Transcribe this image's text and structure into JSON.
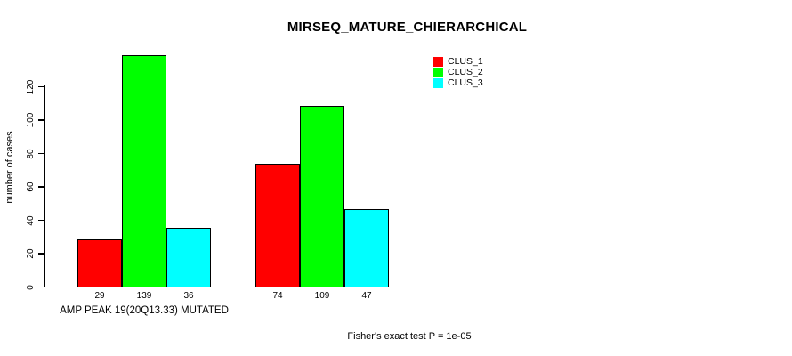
{
  "title": "MIRSEQ_MATURE_CHIERARCHICAL",
  "legend": {
    "items": [
      {
        "label": "CLUS_1",
        "color": "#ff0000"
      },
      {
        "label": "CLUS_2",
        "color": "#00ff00"
      },
      {
        "label": "CLUS_3",
        "color": "#00ffff"
      }
    ]
  },
  "chart_data": {
    "type": "bar",
    "title": "MIRSEQ_MATURE_CHIERARCHICAL",
    "xlabel": "",
    "ylabel": "number of cases",
    "yticks": [
      0,
      20,
      40,
      60,
      80,
      100,
      120
    ],
    "ylim": [
      0,
      139
    ],
    "categories": [
      "AMP PEAK 19(20Q13.33) MUTATED",
      ""
    ],
    "series": [
      {
        "name": "CLUS_1",
        "color": "#ff0000",
        "values": [
          29,
          74
        ]
      },
      {
        "name": "CLUS_2",
        "color": "#00ff00",
        "values": [
          139,
          109
        ]
      },
      {
        "name": "CLUS_3",
        "color": "#00ffff",
        "values": [
          36,
          47
        ]
      }
    ],
    "groups": [
      {
        "label": "AMP PEAK 19(20Q13.33) MUTATED",
        "values": [
          29,
          139,
          36
        ]
      },
      {
        "label": "",
        "values": [
          74,
          109,
          47
        ]
      }
    ],
    "bar_value_labels": [
      29,
      139,
      36,
      74,
      109,
      47
    ],
    "annotation": "Fisher's exact test P = 1e-05",
    "legend_position": "top-right",
    "grid": false,
    "background": "#ffffff",
    "bar_border_color": "#000000"
  }
}
